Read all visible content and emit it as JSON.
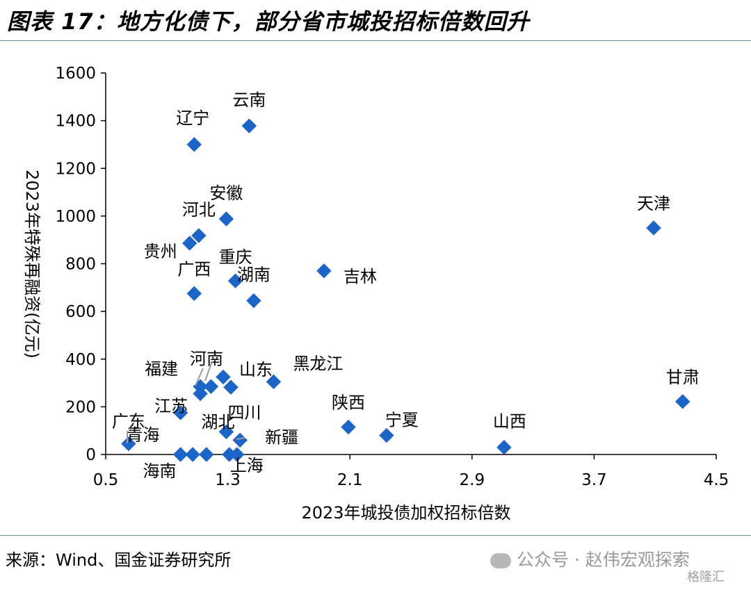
{
  "header": {
    "title": "图表 17：地方化债下，部分省市城投招标倍数回升"
  },
  "footer": {
    "source": "来源：Wind、国金证券研究所",
    "watermark": "公众号 · 赵伟宏观探索",
    "badge": "格隆汇"
  },
  "chart_data": {
    "type": "scatter",
    "title": "",
    "xlabel": "2023年城投债加权招标倍数",
    "ylabel": "2023年特殊再融资(亿元)",
    "xlim": [
      0.5,
      4.5
    ],
    "ylim": [
      0,
      1600
    ],
    "xticks": [
      "0.5",
      "1.3",
      "2.1",
      "2.9",
      "3.7",
      "4.5"
    ],
    "yticks": [
      "0",
      "200",
      "400",
      "600",
      "800",
      "1000",
      "1200",
      "1400",
      "1600"
    ],
    "marker_color": "#1b64c8",
    "points": [
      {
        "label": "辽宁",
        "x": 1.08,
        "y": 1300
      },
      {
        "label": "云南",
        "x": 1.44,
        "y": 1378
      },
      {
        "label": "安徽",
        "x": 1.29,
        "y": 988
      },
      {
        "label": "河北",
        "x": 1.11,
        "y": 918
      },
      {
        "label": "贵州",
        "x": 1.05,
        "y": 886
      },
      {
        "label": "重庆",
        "x": 1.35,
        "y": 728
      },
      {
        "label": "广西",
        "x": 1.08,
        "y": 675
      },
      {
        "label": "湖南",
        "x": 1.47,
        "y": 645
      },
      {
        "label": "吉林",
        "x": 1.93,
        "y": 770
      },
      {
        "label": "天津",
        "x": 4.09,
        "y": 950
      },
      {
        "label": "河南",
        "x": 1.27,
        "y": 325
      },
      {
        "label": "山东",
        "x": 1.32,
        "y": 282
      },
      {
        "label": "福建",
        "x": 1.12,
        "y": 285
      },
      {
        "label": "江苏",
        "x": 1.12,
        "y": 255
      },
      {
        "label": "黑龙江",
        "x": 1.6,
        "y": 305
      },
      {
        "label": "广东",
        "x": 0.65,
        "y": 45
      },
      {
        "label": "青海",
        "x": 0.99,
        "y": 175
      },
      {
        "label": "湖北",
        "x": 1.29,
        "y": 95
      },
      {
        "label": "四川",
        "x": 1.19,
        "y": 285
      },
      {
        "label": "新疆",
        "x": 1.38,
        "y": 60
      },
      {
        "label": "上海",
        "x": 1.36,
        "y": 0
      },
      {
        "label": "海南",
        "x": 0.99,
        "y": 0
      },
      {
        "label": "陕西",
        "x": 2.09,
        "y": 115
      },
      {
        "label": "宁夏",
        "x": 2.34,
        "y": 80
      },
      {
        "label": "山西",
        "x": 3.11,
        "y": 30
      },
      {
        "label": "甘肃",
        "x": 4.28,
        "y": 222
      }
    ],
    "unlabeled_points": [
      {
        "x": 1.07,
        "y": 0
      },
      {
        "x": 1.16,
        "y": 0
      },
      {
        "x": 1.31,
        "y": 0
      }
    ]
  }
}
